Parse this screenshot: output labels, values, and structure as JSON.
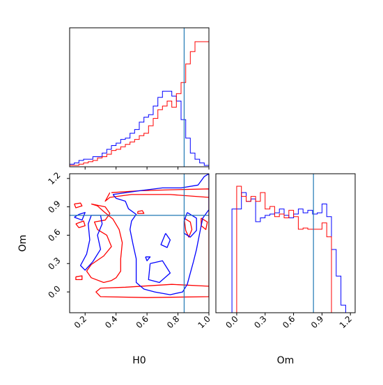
{
  "colors": {
    "blue": "#0000ff",
    "red": "#ff0000",
    "truth": "#1f77b4",
    "axes": "#000000"
  },
  "chart_data": {
    "type": "corner",
    "parameters": [
      "H0",
      "Om"
    ],
    "truth": {
      "H0": 0.84,
      "Om": 0.81
    },
    "grid": false,
    "legend": "none",
    "panels": [
      {
        "id": "hist-H0",
        "type": "histogram-step",
        "xlim": [
          0.1,
          1.0
        ],
        "bin_edges": [
          0.1,
          0.13,
          0.16,
          0.19,
          0.22,
          0.25,
          0.28,
          0.31,
          0.34,
          0.37,
          0.4,
          0.43,
          0.46,
          0.49,
          0.52,
          0.55,
          0.58,
          0.61,
          0.64,
          0.67,
          0.7,
          0.73,
          0.76,
          0.79,
          0.82,
          0.85,
          0.88,
          0.91,
          0.94,
          0.97,
          1.0
        ],
        "series": [
          {
            "name": "blue",
            "color": "#0000ff",
            "values": [
              0.01,
              0.02,
              0.04,
              0.05,
              0.05,
              0.07,
              0.07,
              0.1,
              0.13,
              0.16,
              0.18,
              0.21,
              0.22,
              0.26,
              0.29,
              0.35,
              0.39,
              0.41,
              0.48,
              0.55,
              0.6,
              0.6,
              0.56,
              0.52,
              0.37,
              0.22,
              0.1,
              0.05,
              0.02,
              0.0
            ]
          },
          {
            "name": "red",
            "color": "#ff0000",
            "values": [
              0.0,
              0.0,
              0.01,
              0.02,
              0.03,
              0.04,
              0.06,
              0.07,
              0.09,
              0.12,
              0.13,
              0.15,
              0.17,
              0.19,
              0.21,
              0.24,
              0.26,
              0.32,
              0.38,
              0.45,
              0.48,
              0.52,
              0.47,
              0.58,
              0.67,
              0.82,
              0.92,
              1.0,
              1.0,
              1.0
            ]
          }
        ]
      },
      {
        "id": "contour-H0-Om",
        "type": "contour",
        "x": "H0",
        "y": "Om",
        "xlim": [
          0.1,
          1.0
        ],
        "ylim": [
          -0.22,
          1.25
        ],
        "xticks": [
          "0.2",
          "0.4",
          "0.6",
          "0.8",
          "1.0"
        ],
        "yticks": [
          "0.0",
          "0.3",
          "0.6",
          "0.9",
          "1.2"
        ],
        "xlabel": "H0",
        "ylabel": "Om",
        "contours": [
          {
            "series": "red",
            "points": [
              [
                0.37,
                1.05
              ],
              [
                0.55,
                1.07
              ],
              [
                0.75,
                1.08
              ],
              [
                1.0,
                1.09
              ],
              [
                1.0,
                -0.05
              ],
              [
                0.6,
                -0.06
              ],
              [
                0.3,
                -0.05
              ],
              [
                0.27,
                0.0
              ],
              [
                0.3,
                0.04
              ],
              [
                0.46,
                0.05
              ],
              [
                0.76,
                0.08
              ],
              [
                1.0,
                0.06
              ],
              [
                1.0,
                1.0
              ],
              [
                0.75,
                1.03
              ],
              [
                0.5,
                1.03
              ],
              [
                0.36,
                1.0
              ],
              [
                0.33,
                0.96
              ],
              [
                0.36,
                1.05
              ]
            ]
          },
          {
            "series": "red",
            "points": [
              [
                0.24,
                0.93
              ],
              [
                0.33,
                0.9
              ],
              [
                0.36,
                0.83
              ],
              [
                0.33,
                0.76
              ],
              [
                0.26,
                0.74
              ],
              [
                0.28,
                0.66
              ],
              [
                0.34,
                0.6
              ],
              [
                0.37,
                0.48
              ],
              [
                0.32,
                0.38
              ],
              [
                0.24,
                0.29
              ],
              [
                0.21,
                0.22
              ],
              [
                0.24,
                0.15
              ],
              [
                0.32,
                0.1
              ],
              [
                0.37,
                0.12
              ],
              [
                0.4,
                0.15
              ],
              [
                0.43,
                0.22
              ],
              [
                0.43,
                0.35
              ],
              [
                0.44,
                0.52
              ],
              [
                0.42,
                0.66
              ],
              [
                0.38,
                0.77
              ],
              [
                0.32,
                0.85
              ],
              [
                0.28,
                0.91
              ],
              [
                0.24,
                0.93
              ]
            ]
          },
          {
            "series": "red",
            "points": [
              [
                0.13,
                0.93
              ],
              [
                0.17,
                0.94
              ],
              [
                0.18,
                0.91
              ],
              [
                0.14,
                0.89
              ],
              [
                0.13,
                0.93
              ]
            ]
          },
          {
            "series": "red",
            "points": [
              [
                0.14,
                0.72
              ],
              [
                0.19,
                0.75
              ],
              [
                0.2,
                0.7
              ],
              [
                0.16,
                0.68
              ],
              [
                0.14,
                0.72
              ]
            ]
          },
          {
            "series": "red",
            "points": [
              [
                0.84,
                0.78
              ],
              [
                0.88,
                0.74
              ],
              [
                0.89,
                0.66
              ],
              [
                0.87,
                0.58
              ],
              [
                0.85,
                0.65
              ],
              [
                0.84,
                0.78
              ]
            ]
          },
          {
            "series": "red",
            "points": [
              [
                0.95,
                0.78
              ],
              [
                0.99,
                0.74
              ],
              [
                0.98,
                0.66
              ],
              [
                0.95,
                0.7
              ],
              [
                0.95,
                0.78
              ]
            ]
          },
          {
            "series": "red",
            "points": [
              [
                0.14,
                0.16
              ],
              [
                0.18,
                0.17
              ],
              [
                0.18,
                0.13
              ],
              [
                0.14,
                0.13
              ],
              [
                0.14,
                0.16
              ]
            ]
          },
          {
            "series": "red",
            "points": [
              [
                0.54,
                0.85
              ],
              [
                0.57,
                0.86
              ],
              [
                0.58,
                0.83
              ],
              [
                0.54,
                0.83
              ],
              [
                0.54,
                0.85
              ]
            ]
          },
          {
            "series": "blue",
            "points": [
              [
                0.38,
                1.03
              ],
              [
                0.55,
                1.07
              ],
              [
                0.7,
                1.1
              ],
              [
                0.82,
                1.1
              ],
              [
                0.93,
                1.13
              ],
              [
                0.97,
                1.22
              ],
              [
                1.0,
                1.25
              ],
              [
                1.0,
                0.87
              ],
              [
                0.96,
                0.78
              ],
              [
                0.94,
                0.62
              ],
              [
                0.92,
                0.45
              ],
              [
                0.9,
                0.32
              ],
              [
                0.88,
                0.2
              ],
              [
                0.86,
                0.08
              ],
              [
                0.83,
                0.0
              ],
              [
                0.75,
                -0.03
              ],
              [
                0.65,
                0.0
              ],
              [
                0.58,
                0.03
              ],
              [
                0.53,
                0.1
              ],
              [
                0.53,
                0.22
              ],
              [
                0.53,
                0.35
              ],
              [
                0.51,
                0.5
              ],
              [
                0.49,
                0.66
              ],
              [
                0.5,
                0.75
              ],
              [
                0.53,
                0.82
              ],
              [
                0.48,
                0.88
              ],
              [
                0.46,
                0.96
              ],
              [
                0.4,
                0.99
              ],
              [
                0.38,
                1.03
              ]
            ]
          },
          {
            "series": "blue",
            "points": [
              [
                0.24,
                0.81
              ],
              [
                0.3,
                0.81
              ],
              [
                0.31,
                0.72
              ],
              [
                0.28,
                0.6
              ],
              [
                0.3,
                0.45
              ],
              [
                0.25,
                0.32
              ],
              [
                0.2,
                0.23
              ],
              [
                0.17,
                0.28
              ],
              [
                0.21,
                0.4
              ],
              [
                0.23,
                0.55
              ],
              [
                0.22,
                0.72
              ],
              [
                0.24,
                0.81
              ]
            ]
          },
          {
            "series": "blue",
            "points": [
              [
                0.86,
                0.84
              ],
              [
                0.92,
                0.78
              ],
              [
                0.92,
                0.65
              ],
              [
                0.88,
                0.58
              ],
              [
                0.84,
                0.62
              ],
              [
                0.84,
                0.75
              ],
              [
                0.86,
                0.84
              ]
            ]
          },
          {
            "series": "blue",
            "points": [
              [
                0.62,
                0.3
              ],
              [
                0.7,
                0.33
              ],
              [
                0.75,
                0.2
              ],
              [
                0.68,
                0.1
              ],
              [
                0.61,
                0.13
              ],
              [
                0.62,
                0.3
              ]
            ]
          },
          {
            "series": "blue",
            "points": [
              [
                0.72,
                0.62
              ],
              [
                0.75,
                0.55
              ],
              [
                0.73,
                0.47
              ],
              [
                0.69,
                0.5
              ],
              [
                0.72,
                0.62
              ]
            ]
          },
          {
            "series": "blue",
            "points": [
              [
                0.13,
                0.79
              ],
              [
                0.16,
                0.82
              ],
              [
                0.2,
                0.84
              ],
              [
                0.18,
                0.76
              ],
              [
                0.13,
                0.79
              ]
            ]
          },
          {
            "series": "blue",
            "points": [
              [
                0.59,
                0.37
              ],
              [
                0.62,
                0.37
              ],
              [
                0.6,
                0.33
              ],
              [
                0.59,
                0.37
              ]
            ]
          }
        ]
      },
      {
        "id": "hist-Om",
        "type": "histogram-step",
        "xlim": [
          -0.22,
          1.25
        ],
        "xticks": [
          "0.0",
          "0.3",
          "0.6",
          "0.9",
          "1.2"
        ],
        "xlabel": "Om",
        "bin_edges": [
          -0.1,
          -0.05,
          0.0,
          0.05,
          0.1,
          0.15,
          0.2,
          0.25,
          0.3,
          0.35,
          0.4,
          0.45,
          0.5,
          0.55,
          0.6,
          0.65,
          0.7,
          0.75,
          0.8,
          0.85,
          0.9,
          0.95,
          1.0,
          1.05,
          1.1,
          1.15,
          1.2
        ],
        "series": [
          {
            "name": "blue",
            "color": "#0000ff",
            "values": [
              0.0,
              0.82,
              0.82,
              0.95,
              0.88,
              0.9,
              0.72,
              0.75,
              0.77,
              0.78,
              0.79,
              0.82,
              0.77,
              0.75,
              0.78,
              0.82,
              0.79,
              0.81,
              0.78,
              0.79,
              0.86,
              0.76,
              0.5,
              0.29,
              0.06,
              0.0
            ]
          },
          {
            "series_note": "",
            "name": "red",
            "color": "#ff0000",
            "values": [
              0.0,
              0.0,
              1.0,
              0.92,
              0.88,
              0.92,
              0.88,
              0.95,
              0.82,
              0.84,
              0.76,
              0.78,
              0.75,
              0.81,
              0.76,
              0.66,
              0.67,
              0.66,
              0.66,
              0.66,
              0.71,
              0.6,
              0.0,
              0.0,
              0.0,
              0.0
            ]
          }
        ]
      }
    ]
  }
}
